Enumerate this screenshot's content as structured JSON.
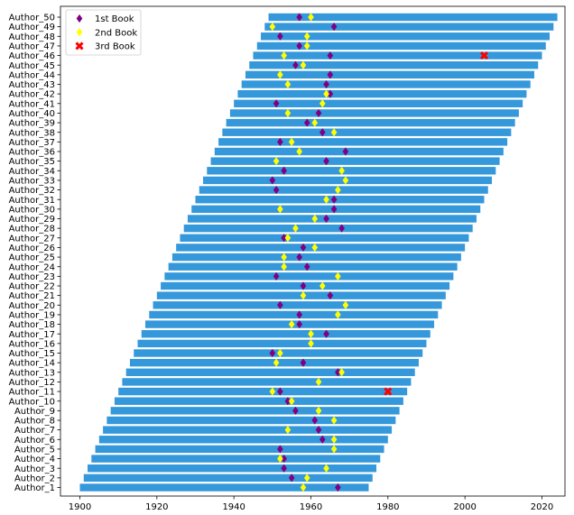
{
  "chart_data": {
    "type": "bar",
    "orientation": "horizontal",
    "title": "",
    "xlabel": "",
    "ylabel": "",
    "xlim": [
      1895,
      2025
    ],
    "x_ticks": [
      1900,
      1920,
      1940,
      1960,
      1980,
      2000,
      2020
    ],
    "grid": false,
    "legend_position": "top-left",
    "bar_color": "#3498db",
    "categories": [
      "Author_1",
      "Author_2",
      "Author_3",
      "Author_4",
      "Author_5",
      "Author_6",
      "Author_7",
      "Author_8",
      "Author_9",
      "Author_10",
      "Author_11",
      "Author_12",
      "Author_13",
      "Author_14",
      "Author_15",
      "Author_16",
      "Author_17",
      "Author_18",
      "Author_19",
      "Author_20",
      "Author_21",
      "Author_22",
      "Author_23",
      "Author_24",
      "Author_25",
      "Author_26",
      "Author_27",
      "Author_28",
      "Author_29",
      "Author_30",
      "Author_31",
      "Author_32",
      "Author_33",
      "Author_34",
      "Author_35",
      "Author_36",
      "Author_37",
      "Author_38",
      "Author_39",
      "Author_40",
      "Author_41",
      "Author_42",
      "Author_43",
      "Author_44",
      "Author_45",
      "Author_46",
      "Author_47",
      "Author_48",
      "Author_49",
      "Author_50"
    ],
    "bar_start": [
      1900,
      1901,
      1902,
      1903,
      1904,
      1905,
      1906,
      1907,
      1908,
      1909,
      1910,
      1911,
      1912,
      1913,
      1914,
      1915,
      1916,
      1917,
      1918,
      1919,
      1920,
      1921,
      1922,
      1923,
      1924,
      1925,
      1926,
      1927,
      1928,
      1929,
      1930,
      1931,
      1932,
      1933,
      1934,
      1935,
      1936,
      1937,
      1938,
      1939,
      1940,
      1941,
      1942,
      1943,
      1944,
      1945,
      1946,
      1947,
      1948,
      1949
    ],
    "bar_end": [
      1975,
      1976,
      1977,
      1978,
      1979,
      1980,
      1981,
      1982,
      1983,
      1984,
      1985,
      1986,
      1987,
      1988,
      1989,
      1990,
      1991,
      1992,
      1993,
      1994,
      1995,
      1996,
      1997,
      1998,
      1999,
      2000,
      2001,
      2002,
      2003,
      2004,
      2005,
      2006,
      2007,
      2008,
      2009,
      2010,
      2011,
      2012,
      2013,
      2014,
      2015,
      2016,
      2017,
      2018,
      2019,
      2020,
      2021,
      2022,
      2023,
      2024
    ],
    "series": [
      {
        "name": "1st Book",
        "color": "#800080",
        "marker": "diamond",
        "values": [
          1967,
          1955,
          1953,
          1953,
          1952,
          1963,
          1962,
          1961,
          1956,
          1954,
          1952,
          null,
          1967,
          1958,
          1950,
          null,
          1964,
          1957,
          1957,
          1952,
          1965,
          1958,
          1951,
          1959,
          1957,
          1958,
          1953,
          1968,
          1964,
          1966,
          1966,
          1951,
          1950,
          1953,
          1964,
          1969,
          1952,
          1963,
          1959,
          1962,
          1951,
          1965,
          1964,
          1965,
          1956,
          1965,
          1957,
          1952,
          1966,
          1957
        ]
      },
      {
        "name": "2nd Book",
        "color": "#ffff00",
        "marker": "diamond",
        "values": [
          1958,
          1959,
          1964,
          1952,
          1966,
          1966,
          1954,
          1966,
          1962,
          1955,
          1950,
          1962,
          1968,
          1951,
          1952,
          1960,
          1960,
          1955,
          1967,
          1969,
          1958,
          1963,
          1967,
          1953,
          1953,
          1961,
          1954,
          1956,
          1961,
          1952,
          1964,
          1967,
          1969,
          1968,
          1951,
          1957,
          1955,
          1966,
          1961,
          1954,
          1963,
          1964,
          1954,
          1952,
          1958,
          1953,
          1959,
          1959,
          1950,
          1960
        ]
      },
      {
        "name": "3rd Book",
        "color": "#ff0000",
        "marker": "x",
        "values": [
          null,
          null,
          null,
          null,
          null,
          null,
          null,
          null,
          null,
          null,
          1980,
          null,
          null,
          null,
          null,
          null,
          null,
          null,
          null,
          null,
          null,
          null,
          null,
          null,
          null,
          null,
          null,
          null,
          null,
          null,
          null,
          null,
          null,
          null,
          null,
          null,
          null,
          null,
          null,
          null,
          null,
          null,
          null,
          null,
          null,
          2005,
          null,
          null,
          null,
          null
        ]
      }
    ]
  }
}
